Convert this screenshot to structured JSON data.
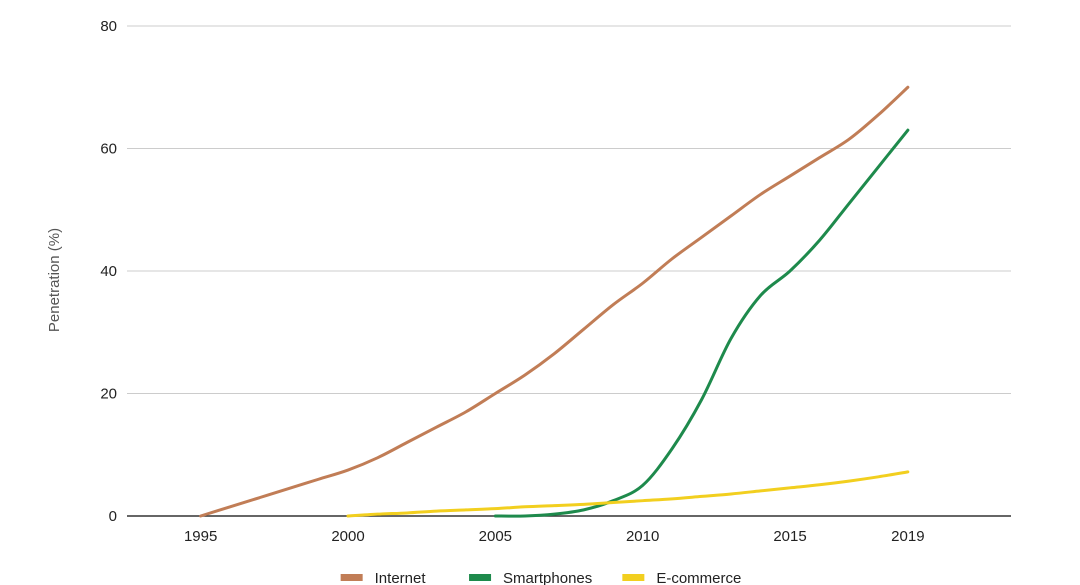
{
  "chart_data": {
    "type": "line",
    "title": "",
    "xlabel": "",
    "ylabel": "Penetration (%)",
    "xlim": [
      1992.5,
      2022.5
    ],
    "ylim": [
      0,
      80
    ],
    "x_ticks": [
      "1995",
      "2000",
      "2005",
      "2010",
      "2015",
      "2019"
    ],
    "y_ticks": [
      "0",
      "20",
      "40",
      "60",
      "80"
    ],
    "grid": true,
    "legend_position": "bottom",
    "series": [
      {
        "name": "Internet",
        "color": "#c17d56",
        "x": [
          1995,
          1996,
          1997,
          1998,
          1999,
          2000,
          2001,
          2002,
          2003,
          2004,
          2005,
          2006,
          2007,
          2008,
          2009,
          2010,
          2011,
          2012,
          2013,
          2014,
          2015,
          2016,
          2017,
          2018,
          2019
        ],
        "y": [
          0,
          1.5,
          3,
          4.5,
          6,
          7.5,
          9.5,
          12,
          14.5,
          17,
          20,
          23,
          26.5,
          30.5,
          34.5,
          38,
          42,
          45.5,
          49,
          52.5,
          55.5,
          58.5,
          61.5,
          65.5,
          70
        ]
      },
      {
        "name": "Smartphones",
        "color": "#1e8a4c",
        "x": [
          2005,
          2006,
          2007,
          2008,
          2009,
          2010,
          2011,
          2012,
          2013,
          2014,
          2015,
          2016,
          2017,
          2018,
          2019
        ],
        "y": [
          0,
          0,
          0.3,
          1,
          2.5,
          5,
          11,
          19,
          29,
          36,
          40,
          45,
          51,
          57,
          63
        ]
      },
      {
        "name": "E-commerce",
        "color": "#f2cf1f",
        "x": [
          2000,
          2001,
          2002,
          2003,
          2004,
          2005,
          2006,
          2007,
          2008,
          2009,
          2010,
          2011,
          2012,
          2013,
          2014,
          2015,
          2016,
          2017,
          2018,
          2019
        ],
        "y": [
          0,
          0.3,
          0.5,
          0.8,
          1,
          1.2,
          1.5,
          1.7,
          1.9,
          2.2,
          2.5,
          2.8,
          3.2,
          3.6,
          4.1,
          4.6,
          5.1,
          5.7,
          6.4,
          7.2
        ]
      }
    ]
  }
}
